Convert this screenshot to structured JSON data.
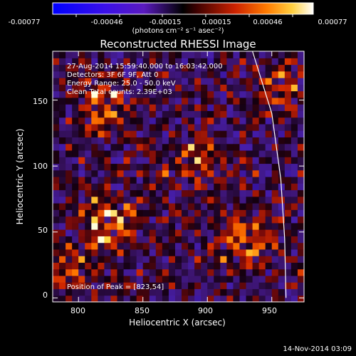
{
  "chart_data": {
    "type": "heatmap",
    "title": "Reconstructed RHESSI Image",
    "xlabel": "Heliocentric X (arcsec)",
    "ylabel": "Heliocentric Y (arcsec)",
    "xlim": [
      780,
      975
    ],
    "ylim": [
      -3,
      187
    ],
    "xticks": [
      "800",
      "850",
      "900",
      "950"
    ],
    "yticks": [
      "0",
      "50",
      "100",
      "150"
    ],
    "colorbar": {
      "ticks": [
        "-0.00077",
        "-0.00046",
        "-0.00015",
        "0.00015",
        "0.00046",
        "0.00077"
      ],
      "units": "(photons cm⁻² s⁻¹ asec⁻²)",
      "range": [
        -0.00077,
        0.00077
      ]
    },
    "annotations": [
      "27-Aug-2014 15:59:40.000 to 16:03:42.000",
      "Detectors: 3F 6F 9F, Att 0",
      "Energy Range: 25.0 - 50.0 keV",
      "Clean      Total counts: 2.39E+03"
    ],
    "peak_label": "Position of Peak = [823,54]",
    "peak": [
      823,
      54
    ],
    "sources": [
      {
        "x": 823,
        "y": 54,
        "amplitude": 1.0
      },
      {
        "x": 820,
        "y": 147,
        "amplitude": 0.8
      },
      {
        "x": 930,
        "y": 45,
        "amplitude": 0.85
      },
      {
        "x": 890,
        "y": 103,
        "amplitude": 0.7
      },
      {
        "x": 955,
        "y": 160,
        "amplitude": 0.55
      },
      {
        "x": 795,
        "y": 20,
        "amplitude": 0.5
      }
    ],
    "limb_curve": [
      [
        935,
        187
      ],
      [
        950,
        140
      ],
      [
        957,
        90
      ],
      [
        960,
        45
      ],
      [
        961,
        0
      ]
    ]
  },
  "footer_text": "14-Nov-2014 03:09",
  "colors": {
    "background": "#000000",
    "text": "#ffffff"
  }
}
